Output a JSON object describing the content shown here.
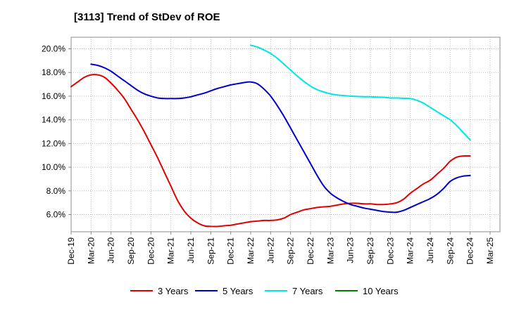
{
  "chart_data": {
    "type": "line",
    "title": "[3113]  Trend of StDev of ROE",
    "xlabel": "",
    "ylabel": "",
    "x_ticks": [
      "Dec-19",
      "Mar-20",
      "Jun-20",
      "Sep-20",
      "Dec-20",
      "Mar-21",
      "Jun-21",
      "Sep-21",
      "Dec-21",
      "Mar-22",
      "Jun-22",
      "Sep-22",
      "Dec-22",
      "Mar-23",
      "Jun-23",
      "Sep-23",
      "Dec-23",
      "Mar-24",
      "Jun-24",
      "Sep-24",
      "Dec-24",
      "Mar-25"
    ],
    "y_ticks": [
      "6.0%",
      "8.0%",
      "10.0%",
      "12.0%",
      "14.0%",
      "16.0%",
      "18.0%",
      "20.0%"
    ],
    "ylim": [
      5.0,
      21.0
    ],
    "grid": true,
    "legend_position": "bottom",
    "series": [
      {
        "name": "3 Years",
        "color": "#e00000",
        "points": [
          [
            "Dec-19",
            16.8
          ],
          [
            "Jan-20",
            17.2
          ],
          [
            "Feb-20",
            17.6
          ],
          [
            "Mar-20",
            17.8
          ],
          [
            "Apr-20",
            17.8
          ],
          [
            "May-20",
            17.6
          ],
          [
            "Jun-20",
            17.1
          ],
          [
            "Jul-20",
            16.5
          ],
          [
            "Aug-20",
            15.8
          ],
          [
            "Sep-20",
            14.9
          ],
          [
            "Oct-20",
            14.0
          ],
          [
            "Nov-20",
            13.0
          ],
          [
            "Dec-20",
            11.9
          ],
          [
            "Jan-21",
            10.8
          ],
          [
            "Feb-21",
            9.6
          ],
          [
            "Mar-21",
            8.4
          ],
          [
            "Apr-21",
            7.2
          ],
          [
            "May-21",
            6.3
          ],
          [
            "Jun-21",
            5.7
          ],
          [
            "Jul-21",
            5.3
          ],
          [
            "Aug-21",
            5.05
          ],
          [
            "Sep-21",
            5.0
          ],
          [
            "Oct-21",
            5.0
          ],
          [
            "Nov-21",
            5.05
          ],
          [
            "Dec-21",
            5.1
          ],
          [
            "Jan-22",
            5.2
          ],
          [
            "Feb-22",
            5.3
          ],
          [
            "Mar-22",
            5.4
          ],
          [
            "Apr-22",
            5.45
          ],
          [
            "May-22",
            5.5
          ],
          [
            "Jun-22",
            5.5
          ],
          [
            "Jul-22",
            5.55
          ],
          [
            "Aug-22",
            5.7
          ],
          [
            "Sep-22",
            6.0
          ],
          [
            "Oct-22",
            6.2
          ],
          [
            "Nov-22",
            6.4
          ],
          [
            "Dec-22",
            6.5
          ],
          [
            "Jan-23",
            6.6
          ],
          [
            "Feb-23",
            6.65
          ],
          [
            "Mar-23",
            6.7
          ],
          [
            "Apr-23",
            6.8
          ],
          [
            "May-23",
            6.9
          ],
          [
            "Jun-23",
            6.95
          ],
          [
            "Jul-23",
            6.95
          ],
          [
            "Aug-23",
            6.9
          ],
          [
            "Sep-23",
            6.9
          ],
          [
            "Oct-23",
            6.85
          ],
          [
            "Nov-23",
            6.85
          ],
          [
            "Dec-23",
            6.9
          ],
          [
            "Jan-24",
            7.0
          ],
          [
            "Feb-24",
            7.3
          ],
          [
            "Mar-24",
            7.8
          ],
          [
            "Apr-24",
            8.2
          ],
          [
            "May-24",
            8.6
          ],
          [
            "Jun-24",
            8.9
          ],
          [
            "Jul-24",
            9.4
          ],
          [
            "Aug-24",
            9.9
          ],
          [
            "Sep-24",
            10.5
          ],
          [
            "Oct-24",
            10.85
          ],
          [
            "Nov-24",
            10.95
          ],
          [
            "Dec-24",
            10.95
          ]
        ]
      },
      {
        "name": "5 Years",
        "color": "#0000cc",
        "points": [
          [
            "Mar-20",
            18.7
          ],
          [
            "Apr-20",
            18.6
          ],
          [
            "May-20",
            18.4
          ],
          [
            "Jun-20",
            18.1
          ],
          [
            "Jul-20",
            17.7
          ],
          [
            "Aug-20",
            17.3
          ],
          [
            "Sep-20",
            16.9
          ],
          [
            "Oct-20",
            16.5
          ],
          [
            "Nov-20",
            16.2
          ],
          [
            "Dec-20",
            16.0
          ],
          [
            "Jan-21",
            15.85
          ],
          [
            "Feb-21",
            15.8
          ],
          [
            "Mar-21",
            15.8
          ],
          [
            "Apr-21",
            15.8
          ],
          [
            "May-21",
            15.85
          ],
          [
            "Jun-21",
            15.95
          ],
          [
            "Jul-21",
            16.1
          ],
          [
            "Aug-21",
            16.25
          ],
          [
            "Sep-21",
            16.45
          ],
          [
            "Oct-21",
            16.65
          ],
          [
            "Nov-21",
            16.8
          ],
          [
            "Dec-21",
            16.95
          ],
          [
            "Jan-22",
            17.05
          ],
          [
            "Feb-22",
            17.15
          ],
          [
            "Mar-22",
            17.2
          ],
          [
            "Apr-22",
            17.05
          ],
          [
            "May-22",
            16.6
          ],
          [
            "Jun-22",
            16.0
          ],
          [
            "Jul-22",
            15.2
          ],
          [
            "Aug-22",
            14.3
          ],
          [
            "Sep-22",
            13.3
          ],
          [
            "Oct-22",
            12.3
          ],
          [
            "Nov-22",
            11.3
          ],
          [
            "Dec-22",
            10.3
          ],
          [
            "Jan-23",
            9.3
          ],
          [
            "Feb-23",
            8.4
          ],
          [
            "Mar-23",
            7.8
          ],
          [
            "Apr-23",
            7.4
          ],
          [
            "May-23",
            7.1
          ],
          [
            "Jun-23",
            6.85
          ],
          [
            "Jul-23",
            6.7
          ],
          [
            "Aug-23",
            6.55
          ],
          [
            "Sep-23",
            6.45
          ],
          [
            "Oct-23",
            6.35
          ],
          [
            "Nov-23",
            6.25
          ],
          [
            "Dec-23",
            6.2
          ],
          [
            "Jan-24",
            6.2
          ],
          [
            "Feb-24",
            6.35
          ],
          [
            "Mar-24",
            6.6
          ],
          [
            "Apr-24",
            6.85
          ],
          [
            "May-24",
            7.1
          ],
          [
            "Jun-24",
            7.35
          ],
          [
            "Jul-24",
            7.7
          ],
          [
            "Aug-24",
            8.2
          ],
          [
            "Sep-24",
            8.8
          ],
          [
            "Oct-24",
            9.1
          ],
          [
            "Nov-24",
            9.25
          ],
          [
            "Dec-24",
            9.3
          ]
        ]
      },
      {
        "name": "7 Years",
        "color": "#00e5e5",
        "points": [
          [
            "Mar-22",
            20.3
          ],
          [
            "Apr-22",
            20.15
          ],
          [
            "May-22",
            19.9
          ],
          [
            "Jun-22",
            19.6
          ],
          [
            "Jul-22",
            19.2
          ],
          [
            "Aug-22",
            18.7
          ],
          [
            "Sep-22",
            18.2
          ],
          [
            "Oct-22",
            17.7
          ],
          [
            "Nov-22",
            17.25
          ],
          [
            "Dec-22",
            16.85
          ],
          [
            "Jan-23",
            16.55
          ],
          [
            "Feb-23",
            16.35
          ],
          [
            "Mar-23",
            16.2
          ],
          [
            "Apr-23",
            16.1
          ],
          [
            "May-23",
            16.05
          ],
          [
            "Jun-23",
            16.0
          ],
          [
            "Jul-23",
            15.98
          ],
          [
            "Aug-23",
            15.95
          ],
          [
            "Sep-23",
            15.95
          ],
          [
            "Oct-23",
            15.92
          ],
          [
            "Nov-23",
            15.9
          ],
          [
            "Dec-23",
            15.85
          ],
          [
            "Jan-24",
            15.85
          ],
          [
            "Feb-24",
            15.82
          ],
          [
            "Mar-24",
            15.8
          ],
          [
            "Apr-24",
            15.65
          ],
          [
            "May-24",
            15.4
          ],
          [
            "Jun-24",
            15.05
          ],
          [
            "Jul-24",
            14.7
          ],
          [
            "Aug-24",
            14.35
          ],
          [
            "Sep-24",
            14.0
          ],
          [
            "Oct-24",
            13.5
          ],
          [
            "Nov-24",
            12.9
          ],
          [
            "Dec-24",
            12.3
          ]
        ]
      },
      {
        "name": "10 Years",
        "color": "#008000",
        "points": []
      }
    ]
  }
}
